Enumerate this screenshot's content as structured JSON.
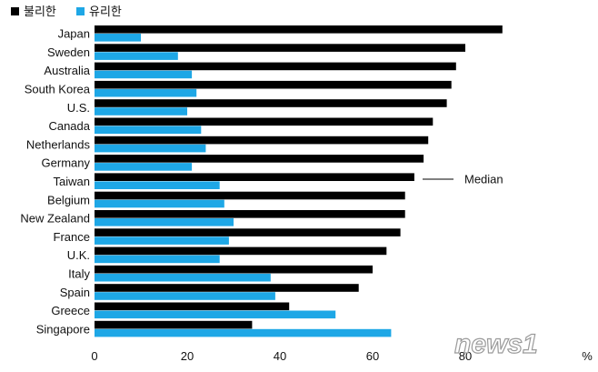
{
  "chart_data": {
    "type": "bar",
    "orientation": "horizontal",
    "categories": [
      "Japan",
      "Sweden",
      "Australia",
      "South Korea",
      "U.S.",
      "Canada",
      "Netherlands",
      "Germany",
      "Taiwan",
      "Belgium",
      "New Zealand",
      "France",
      "U.K.",
      "Italy",
      "Spain",
      "Greece",
      "Singapore"
    ],
    "series": [
      {
        "name": "불리한",
        "color": "#000000",
        "values": [
          88,
          80,
          78,
          77,
          76,
          73,
          72,
          71,
          69,
          67,
          67,
          66,
          63,
          60,
          57,
          42,
          34
        ]
      },
      {
        "name": "유리한",
        "color": "#1ea7e6",
        "values": [
          10,
          18,
          21,
          22,
          20,
          23,
          24,
          21,
          27,
          28,
          30,
          29,
          27,
          38,
          39,
          52,
          64
        ]
      }
    ],
    "x_ticks": [
      0,
      20,
      40,
      60,
      80
    ],
    "xlim": [
      0,
      90
    ],
    "tick_suffix": "%",
    "annotation": {
      "label": "Median",
      "category": "Taiwan"
    },
    "legend_position": "top-left",
    "grid": false
  },
  "watermark": {
    "text": "news1"
  }
}
